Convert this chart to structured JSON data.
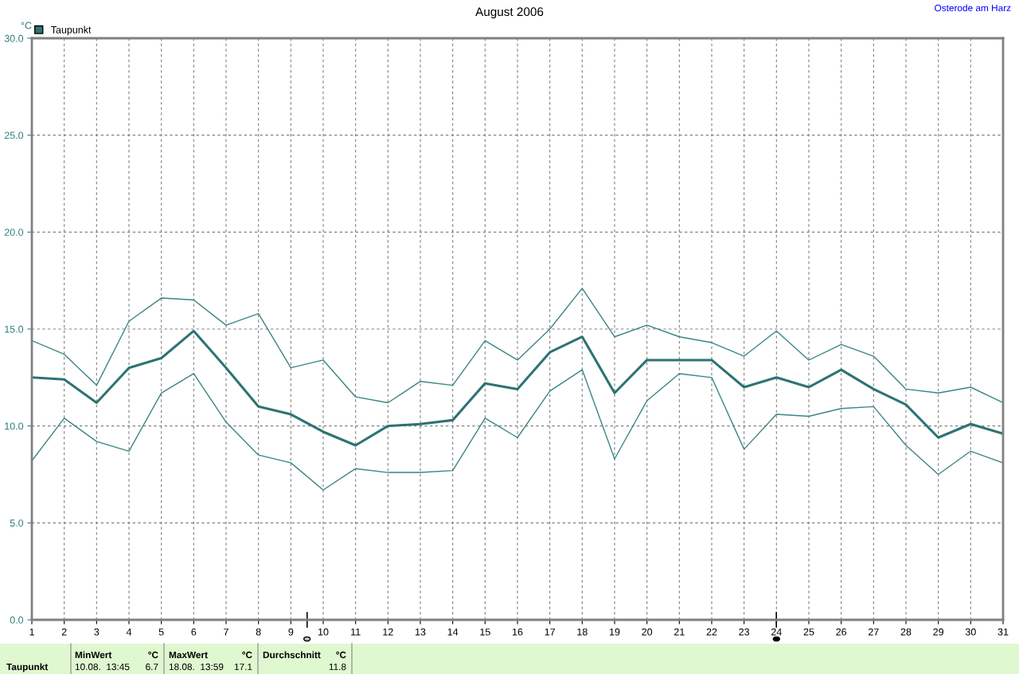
{
  "chart_data": {
    "type": "line",
    "title": "August 2006",
    "ylabel": "°C",
    "x": [
      1,
      2,
      3,
      4,
      5,
      6,
      7,
      8,
      9,
      10,
      11,
      12,
      13,
      14,
      15,
      16,
      17,
      18,
      19,
      20,
      21,
      22,
      23,
      24,
      25,
      26,
      27,
      28,
      29,
      30,
      31
    ],
    "series": [
      {
        "color": "#3a8585",
        "values": [
          14.4,
          13.7,
          12.1,
          15.4,
          16.6,
          16.5,
          15.2,
          15.8,
          13.0,
          13.4,
          11.5,
          11.2,
          12.3,
          12.1,
          14.4,
          13.4,
          15.0,
          17.1,
          14.6,
          15.2,
          14.6,
          14.3,
          13.6,
          14.9,
          13.4,
          14.2,
          13.6,
          11.9,
          11.7,
          12.0,
          11.2
        ]
      },
      {
        "name": "Taupunkt",
        "color": "#2e7373",
        "values": [
          12.5,
          12.4,
          11.2,
          13.0,
          13.5,
          14.9,
          13.0,
          11.0,
          10.6,
          9.7,
          9.0,
          10.0,
          10.1,
          10.3,
          12.2,
          11.9,
          13.8,
          14.6,
          11.7,
          13.4,
          13.4,
          13.4,
          12.0,
          12.5,
          12.0,
          12.9,
          11.9,
          11.1,
          9.4,
          10.1,
          9.6
        ]
      },
      {
        "color": "#3a8585",
        "values": [
          8.2,
          10.4,
          9.2,
          8.7,
          11.7,
          12.7,
          10.2,
          8.5,
          8.1,
          6.7,
          7.8,
          7.6,
          7.6,
          7.7,
          10.4,
          9.4,
          11.8,
          12.9,
          8.3,
          11.3,
          12.7,
          12.5,
          8.8,
          10.6,
          10.5,
          10.9,
          11.0,
          9.0,
          7.5,
          8.7,
          8.1
        ]
      }
    ],
    "xlim": [
      1,
      31
    ],
    "xticks": [
      1,
      2,
      3,
      4,
      5,
      6,
      7,
      8,
      9,
      10,
      11,
      12,
      13,
      14,
      15,
      16,
      17,
      18,
      19,
      20,
      21,
      22,
      23,
      24,
      25,
      26,
      27,
      28,
      29,
      30,
      31
    ],
    "ylim": [
      0,
      30
    ],
    "yticks": [
      {
        "value": 0,
        "label": "0.0"
      },
      {
        "value": 5,
        "label": "5.0"
      },
      {
        "value": 10,
        "label": "10.0"
      },
      {
        "value": 15,
        "label": "15.0"
      },
      {
        "value": 20,
        "label": "20.0"
      },
      {
        "value": 25,
        "label": "25.0"
      },
      {
        "value": 30,
        "label": "30.0"
      }
    ],
    "grid": true,
    "legend": "top left",
    "line_style": "solid",
    "marker": "none",
    "annotations": [
      "Osterode am Harz",
      "Taupunkt",
      "MinWert",
      "°C",
      "10.08.  13:45",
      "6.7",
      "MaxWert",
      "°C",
      "18.08.  13:59",
      "17.1",
      "Durchschnitt",
      "°C",
      "11.8"
    ]
  }
}
